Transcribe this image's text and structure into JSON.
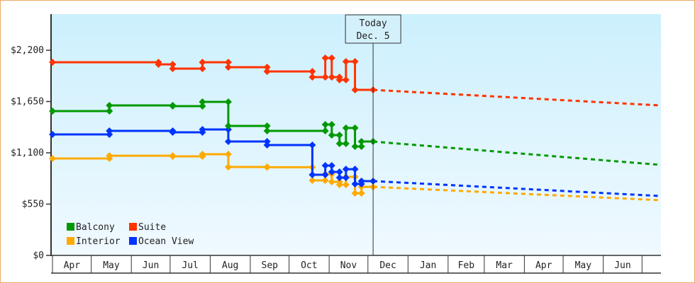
{
  "chart_data": {
    "type": "line",
    "title": "",
    "xlabel": "",
    "ylabel": "",
    "x_units": "days since Apr 1",
    "xlim": [
      0,
      470
    ],
    "ylim": [
      0,
      2200
    ],
    "y_ticks": [
      0,
      550,
      1100,
      1650,
      2200
    ],
    "y_tick_labels": [
      "$0",
      "$550",
      "$1,100",
      "$1,650",
      "$2,200"
    ],
    "months": [
      {
        "label": "Apr",
        "start": 0
      },
      {
        "label": "May",
        "start": 30
      },
      {
        "label": "Jun",
        "start": 61
      },
      {
        "label": "Jul",
        "start": 91
      },
      {
        "label": "Aug",
        "start": 122
      },
      {
        "label": "Sep",
        "start": 153
      },
      {
        "label": "Oct",
        "start": 183
      },
      {
        "label": "Nov",
        "start": 214
      },
      {
        "label": "Dec",
        "start": 244
      },
      {
        "label": "Jan",
        "start": 275
      },
      {
        "label": "Feb",
        "start": 306
      },
      {
        "label": "Mar",
        "start": 334
      },
      {
        "label": "Apr",
        "start": 365
      },
      {
        "label": "May",
        "start": 395
      },
      {
        "label": "Jun",
        "start": 426
      },
      {
        "label": "",
        "start": 456
      }
    ],
    "today": {
      "day": 248,
      "label1": "Today",
      "label2": "Dec. 5"
    },
    "legend_position": "bottom-left",
    "series": [
      {
        "name": "Suite",
        "color": "#ff3300",
        "projection_end": [
          470,
          1608
        ],
        "points": [
          [
            0,
            2071
          ],
          [
            82,
            2071
          ],
          [
            82,
            2048
          ],
          [
            93,
            2048
          ],
          [
            93,
            2003
          ],
          [
            116,
            2003
          ],
          [
            116,
            2071
          ],
          [
            136,
            2071
          ],
          [
            136,
            2018
          ],
          [
            166,
            2018
          ],
          [
            166,
            1972
          ],
          [
            201,
            1972
          ],
          [
            201,
            1912
          ],
          [
            211,
            1912
          ],
          [
            211,
            2117
          ],
          [
            216,
            2117
          ],
          [
            216,
            1912
          ],
          [
            222,
            1912
          ],
          [
            222,
            1882
          ],
          [
            227,
            1882
          ],
          [
            227,
            2079
          ],
          [
            234,
            2079
          ],
          [
            234,
            1775
          ],
          [
            248,
            1775
          ]
        ]
      },
      {
        "name": "Balcony",
        "color": "#009900",
        "projection_end": [
          470,
          971
        ],
        "points": [
          [
            0,
            1548
          ],
          [
            44,
            1548
          ],
          [
            44,
            1608
          ],
          [
            93,
            1608
          ],
          [
            93,
            1601
          ],
          [
            116,
            1601
          ],
          [
            116,
            1646
          ],
          [
            136,
            1646
          ],
          [
            136,
            1388
          ],
          [
            166,
            1388
          ],
          [
            166,
            1335
          ],
          [
            211,
            1335
          ],
          [
            211,
            1403
          ],
          [
            216,
            1403
          ],
          [
            216,
            1290
          ],
          [
            222,
            1290
          ],
          [
            222,
            1199
          ],
          [
            227,
            1199
          ],
          [
            227,
            1366
          ],
          [
            234,
            1366
          ],
          [
            234,
            1168
          ],
          [
            239,
            1168
          ],
          [
            239,
            1221
          ],
          [
            248,
            1221
          ]
        ]
      },
      {
        "name": "Ocean View",
        "color": "#0033ff",
        "projection_end": [
          470,
          637
        ],
        "points": [
          [
            0,
            1297
          ],
          [
            44,
            1297
          ],
          [
            44,
            1335
          ],
          [
            93,
            1335
          ],
          [
            93,
            1320
          ],
          [
            116,
            1320
          ],
          [
            116,
            1350
          ],
          [
            136,
            1350
          ],
          [
            136,
            1221
          ],
          [
            166,
            1221
          ],
          [
            166,
            1183
          ],
          [
            201,
            1183
          ],
          [
            201,
            865
          ],
          [
            211,
            865
          ],
          [
            211,
            963
          ],
          [
            216,
            963
          ],
          [
            216,
            895
          ],
          [
            222,
            895
          ],
          [
            222,
            834
          ],
          [
            227,
            834
          ],
          [
            227,
            925
          ],
          [
            234,
            925
          ],
          [
            234,
            766
          ],
          [
            239,
            766
          ],
          [
            239,
            797
          ],
          [
            248,
            797
          ]
        ]
      },
      {
        "name": "Interior",
        "color": "#ffaa00",
        "projection_end": [
          470,
          592
        ],
        "points": [
          [
            0,
            1039
          ],
          [
            44,
            1039
          ],
          [
            44,
            1069
          ],
          [
            93,
            1069
          ],
          [
            93,
            1062
          ],
          [
            116,
            1062
          ],
          [
            116,
            1085
          ],
          [
            136,
            1085
          ],
          [
            136,
            948
          ],
          [
            166,
            948
          ],
          [
            166,
            945
          ],
          [
            201,
            945
          ],
          [
            201,
            804
          ],
          [
            211,
            804
          ],
          [
            211,
            872
          ],
          [
            216,
            872
          ],
          [
            216,
            789
          ],
          [
            222,
            789
          ],
          [
            222,
            758
          ],
          [
            227,
            758
          ],
          [
            227,
            842
          ],
          [
            234,
            842
          ],
          [
            234,
            667
          ],
          [
            239,
            667
          ],
          [
            239,
            735
          ],
          [
            248,
            735
          ]
        ]
      }
    ],
    "legend": [
      {
        "name": "Balcony",
        "color": "#009900"
      },
      {
        "name": "Suite",
        "color": "#ff3300"
      },
      {
        "name": "Interior",
        "color": "#ffaa00"
      },
      {
        "name": "Ocean View",
        "color": "#0033ff"
      }
    ]
  }
}
